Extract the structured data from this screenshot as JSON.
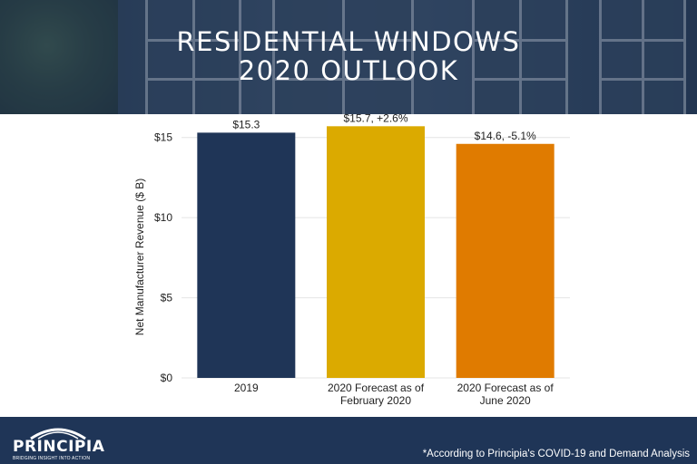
{
  "header": {
    "title_line1": "RESIDENTIAL WINDOWS",
    "title_line2": "2020 OUTLOOK"
  },
  "chart_data": {
    "type": "bar",
    "categories": [
      [
        "2019"
      ],
      [
        "2020 Forecast as of",
        "February 2020"
      ],
      [
        "2020 Forecast as of",
        "June 2020"
      ]
    ],
    "values": [
      15.3,
      15.7,
      14.6
    ],
    "data_labels": [
      "$15.3",
      "$15.7, +2.6%",
      "$14.6, -5.1%"
    ],
    "colors": [
      "#1f3557",
      "#dbaa00",
      "#e07b00"
    ],
    "xlabel": "",
    "ylabel": "Net Manufacturer Revenue ($ B)",
    "ylim": [
      0,
      16
    ],
    "yticks": [
      0,
      5,
      10,
      15
    ],
    "ytick_labels": [
      "$0",
      "$5",
      "$10",
      "$15"
    ],
    "grid": true
  },
  "footer": {
    "logo_text": "PRINCIPIA",
    "tagline": "BRIDGING INSIGHT INTO ACTION",
    "footnote": "*According to Principia's COVID-19 and Demand Analysis"
  }
}
